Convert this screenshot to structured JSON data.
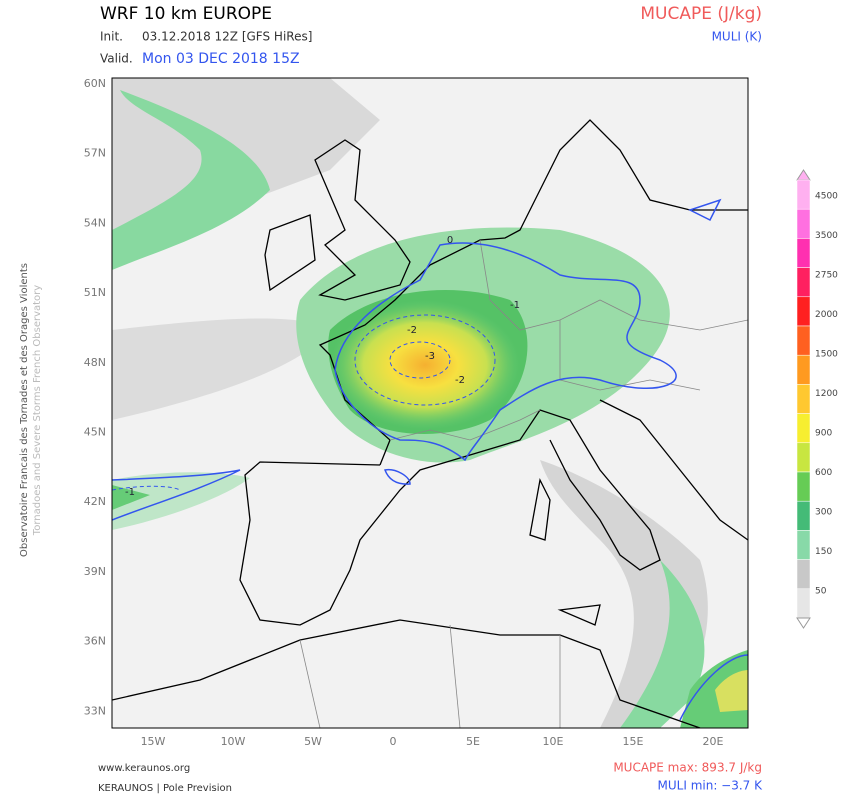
{
  "header": {
    "title": "WRF 10 km EUROPE",
    "init_label": "Init.",
    "init": "03.12.2018 12Z [GFS HiRes]",
    "valid_label": "Valid.",
    "valid": "Mon 03 DEC 2018 15Z",
    "field": "MUCAPE (J/kg)",
    "overlay": "MULI (K)"
  },
  "side_text": {
    "french": "Observatoire Francais des Tornades et des Orages Violents",
    "english": "Tornadoes and Severe Storms French Observatory"
  },
  "axes": {
    "lat_labels": [
      "60N",
      "57N",
      "54N",
      "51N",
      "48N",
      "45N",
      "42N",
      "39N",
      "36N",
      "33N"
    ],
    "lon_labels": [
      "15W",
      "10W",
      "5W",
      "0",
      "5E",
      "10E",
      "15E",
      "20E"
    ]
  },
  "contour_labels": [
    "0",
    "-1",
    "-2",
    "-3",
    "-2",
    "-1"
  ],
  "colorbar": {
    "labels": [
      4500,
      3500,
      2750,
      2000,
      1500,
      1200,
      900,
      600,
      300,
      150,
      50
    ]
  },
  "footer": {
    "website": "www.keraunos.org",
    "credit": "KERAUNOS | Pole Prevision",
    "max": "MUCAPE max: 893.7 J/kg",
    "min": "MULI min: −3.7 K"
  }
}
